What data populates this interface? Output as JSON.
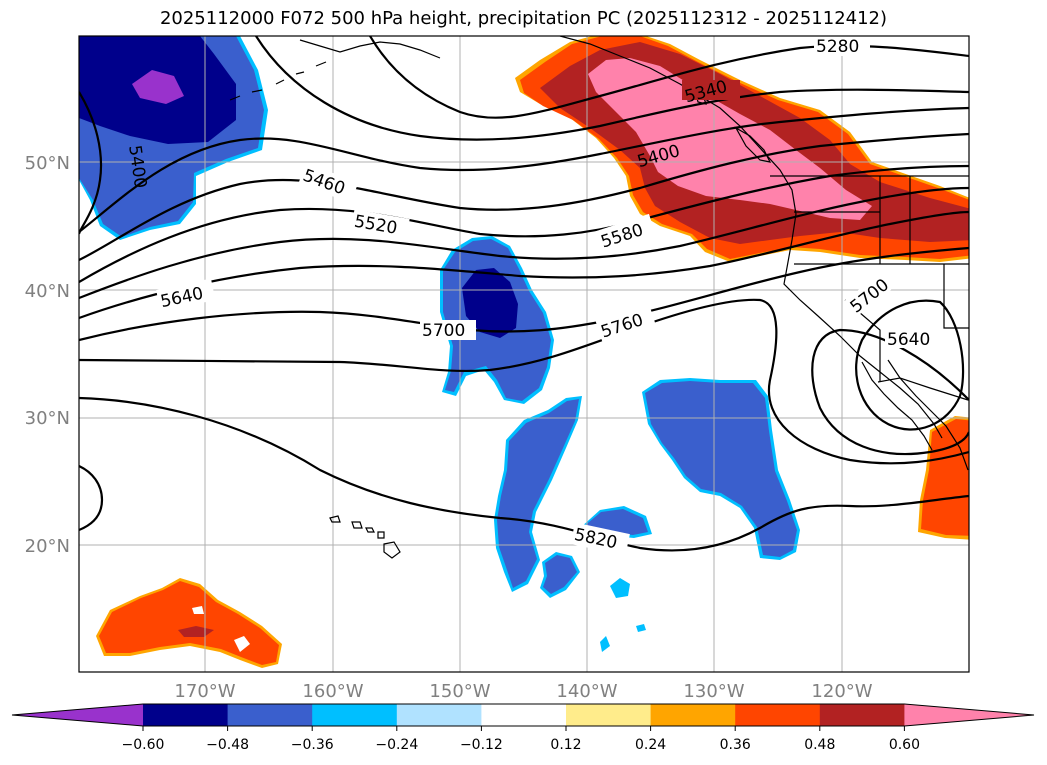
{
  "title": "2025112000 F072 500 hPa height, precipitation PC (2025112312 - 2025112412)",
  "axes": {
    "lat_labels": [
      "50°N",
      "40°N",
      "30°N",
      "20°N"
    ],
    "lon_labels": [
      "170°W",
      "160°W",
      "150°W",
      "140°W",
      "130°W",
      "120°W"
    ]
  },
  "contour_labels": [
    "5280",
    "5340",
    "5400",
    "5400",
    "5460",
    "5520",
    "5580",
    "5640",
    "5640",
    "5700",
    "5700",
    "5760",
    "5820"
  ],
  "colorbar": {
    "ticks": [
      "−0.60",
      "−0.48",
      "−0.36",
      "−0.24",
      "−0.12",
      "0.12",
      "0.24",
      "0.36",
      "0.48",
      "0.60"
    ],
    "colors": [
      "#9932cc",
      "#00008b",
      "#3a5fcd",
      "#00bfff",
      "#b0e2ff",
      "#ffffff",
      "#ffec8b",
      "#ffa500",
      "#ff4500",
      "#b22222",
      "#ff82ab"
    ]
  },
  "colors": {
    "positive_high": "#ff82ab",
    "positive_mid": "#b22222",
    "positive_low": "#ff4500",
    "negative_low": "#3a5fcd",
    "negative_mid": "#00008b",
    "negative_high": "#9932cc",
    "edge_pos": "#ffa500",
    "edge_neg": "#00bfff"
  }
}
